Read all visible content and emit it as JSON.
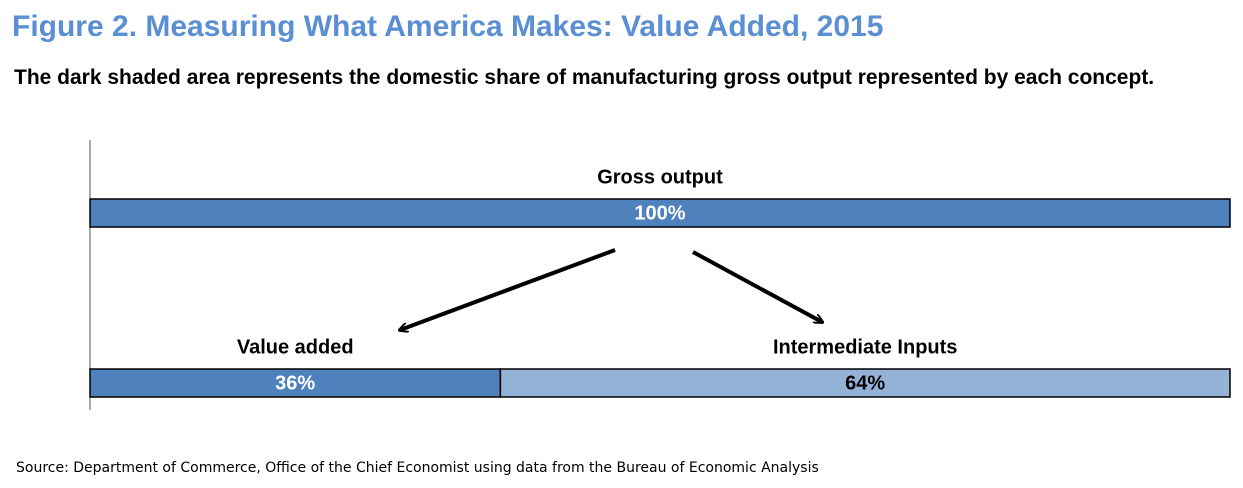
{
  "chart_data": {
    "type": "stacked_bar",
    "title": "Figure 2. Measuring What America Makes: Value Added, 2015",
    "subtitle": "The dark shaded area represents the domestic share of manufacturing  gross output represented by each concept.",
    "source": "Source: Department of Commerce, Office of the Chief Economist using data from the Bureau of Economic Analysis",
    "xlim": [
      0,
      100
    ],
    "rows": [
      {
        "segments": [
          {
            "name": "Gross output",
            "value": 100,
            "value_label": "100%",
            "color": "#4f81bd"
          }
        ]
      },
      {
        "segments": [
          {
            "name": "Value added",
            "value": 36,
            "value_label": "36%",
            "color": "#4f81bd"
          },
          {
            "name": "Intermediate Inputs",
            "value": 64,
            "value_label": "64%",
            "color": "#95b3d7"
          }
        ]
      }
    ]
  }
}
